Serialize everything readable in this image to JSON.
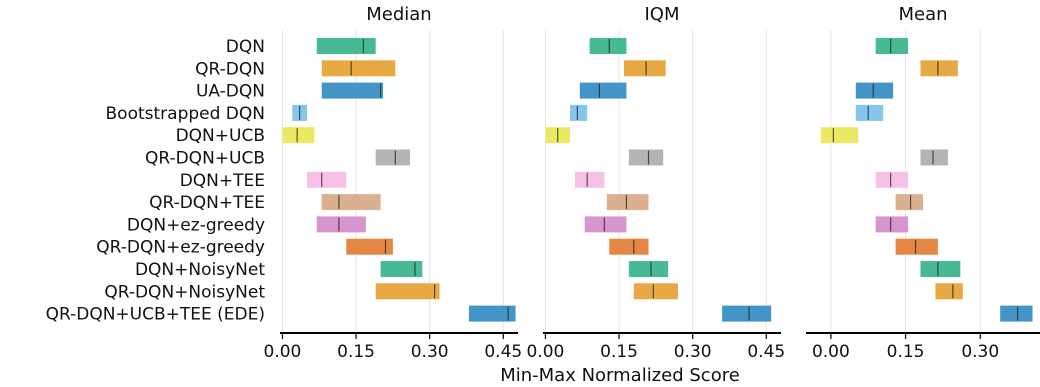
{
  "chart_data": {
    "type": "interval",
    "xlabel": "Min-Max Normalized Score",
    "methods": [
      "DQN",
      "QR-DQN",
      "UA-DQN",
      "Bootstrapped DQN",
      "DQN+UCB",
      "QR-DQN+UCB",
      "DQN+TEE",
      "QR-DQN+TEE",
      "DQN+ez-greedy",
      "QR-DQN+ez-greedy",
      "DQN+NoisyNet",
      "QR-DQN+NoisyNet",
      "QR-DQN+UCB+TEE (EDE)"
    ],
    "colors": [
      "#3db58f",
      "#e5a43a",
      "#3a8fc4",
      "#7fc3ec",
      "#ece75a",
      "#b0b0b0",
      "#f7bde6",
      "#d8ac8a",
      "#d58fce",
      "#e47f3b",
      "#3db58f",
      "#e5a43a",
      "#3a8fc4"
    ],
    "panels": [
      {
        "title": "Median",
        "xlim": [
          -0.005,
          0.48
        ],
        "ticks": [
          "0.00",
          "0.15",
          "0.30",
          "0.45"
        ],
        "tick_values": [
          0.0,
          0.15,
          0.3,
          0.45
        ],
        "lo": [
          0.07,
          0.08,
          0.08,
          0.02,
          0.0,
          0.19,
          0.05,
          0.08,
          0.07,
          0.13,
          0.2,
          0.19,
          0.38
        ],
        "mid": [
          0.165,
          0.14,
          0.2,
          0.035,
          0.03,
          0.23,
          0.08,
          0.115,
          0.115,
          0.21,
          0.27,
          0.31,
          0.46
        ],
        "hi": [
          0.19,
          0.23,
          0.205,
          0.05,
          0.065,
          0.26,
          0.13,
          0.2,
          0.17,
          0.225,
          0.285,
          0.32,
          0.475
        ]
      },
      {
        "title": "IQM",
        "xlim": [
          -0.005,
          0.48
        ],
        "ticks": [
          "0.00",
          "0.15",
          "0.30",
          "0.45"
        ],
        "tick_values": [
          0.0,
          0.15,
          0.3,
          0.45
        ],
        "lo": [
          0.09,
          0.16,
          0.07,
          0.05,
          0.0,
          0.17,
          0.06,
          0.125,
          0.08,
          0.13,
          0.17,
          0.18,
          0.36
        ],
        "mid": [
          0.13,
          0.205,
          0.11,
          0.065,
          0.025,
          0.21,
          0.085,
          0.165,
          0.12,
          0.18,
          0.215,
          0.22,
          0.415
        ],
        "hi": [
          0.165,
          0.245,
          0.165,
          0.085,
          0.05,
          0.24,
          0.12,
          0.21,
          0.165,
          0.21,
          0.25,
          0.27,
          0.46
        ]
      },
      {
        "title": "Mean",
        "xlim": [
          -0.05,
          0.42
        ],
        "ticks": [
          "0.00",
          "0.15",
          "0.30"
        ],
        "tick_values": [
          0.0,
          0.15,
          0.3
        ],
        "lo": [
          0.09,
          0.18,
          0.05,
          0.05,
          -0.02,
          0.18,
          0.09,
          0.13,
          0.09,
          0.13,
          0.18,
          0.21,
          0.34
        ],
        "mid": [
          0.12,
          0.215,
          0.085,
          0.075,
          0.005,
          0.205,
          0.12,
          0.16,
          0.12,
          0.17,
          0.215,
          0.245,
          0.375
        ],
        "hi": [
          0.155,
          0.255,
          0.125,
          0.105,
          0.055,
          0.235,
          0.155,
          0.185,
          0.155,
          0.215,
          0.26,
          0.265,
          0.405
        ]
      }
    ]
  }
}
